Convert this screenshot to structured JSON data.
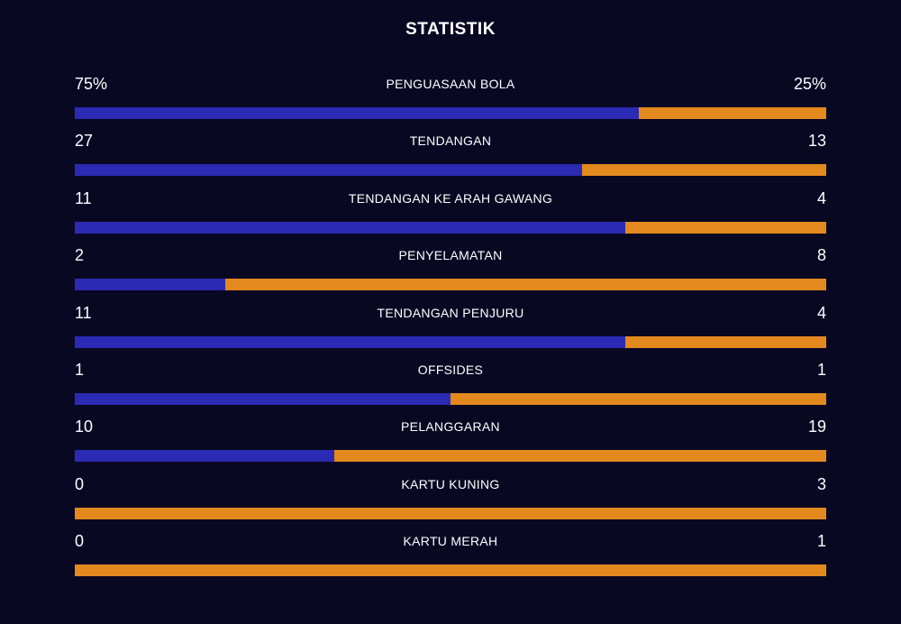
{
  "title": "STATISTIK",
  "colors": {
    "background": "#090823",
    "home_bar": "#2b2ab4",
    "away_bar": "#e3891d",
    "text": "#ffffff"
  },
  "stats": [
    {
      "label": "PENGUASAAN BOLA",
      "home": "75%",
      "away": "25%",
      "home_share": 0.75
    },
    {
      "label": "TENDANGAN",
      "home": "27",
      "away": "13",
      "home_share": 0.675
    },
    {
      "label": "TENDANGAN KE ARAH GAWANG",
      "home": "11",
      "away": "4",
      "home_share": 0.733
    },
    {
      "label": "PENYELAMATAN",
      "home": "2",
      "away": "8",
      "home_share": 0.2
    },
    {
      "label": "TENDANGAN PENJURU",
      "home": "11",
      "away": "4",
      "home_share": 0.733
    },
    {
      "label": "OFFSIDES",
      "home": "1",
      "away": "1",
      "home_share": 0.5
    },
    {
      "label": "PELANGGARAN",
      "home": "10",
      "away": "19",
      "home_share": 0.345
    },
    {
      "label": "KARTU KUNING",
      "home": "0",
      "away": "3",
      "home_share": 0
    },
    {
      "label": "KARTU MERAH",
      "home": "0",
      "away": "1",
      "home_share": 0
    }
  ]
}
